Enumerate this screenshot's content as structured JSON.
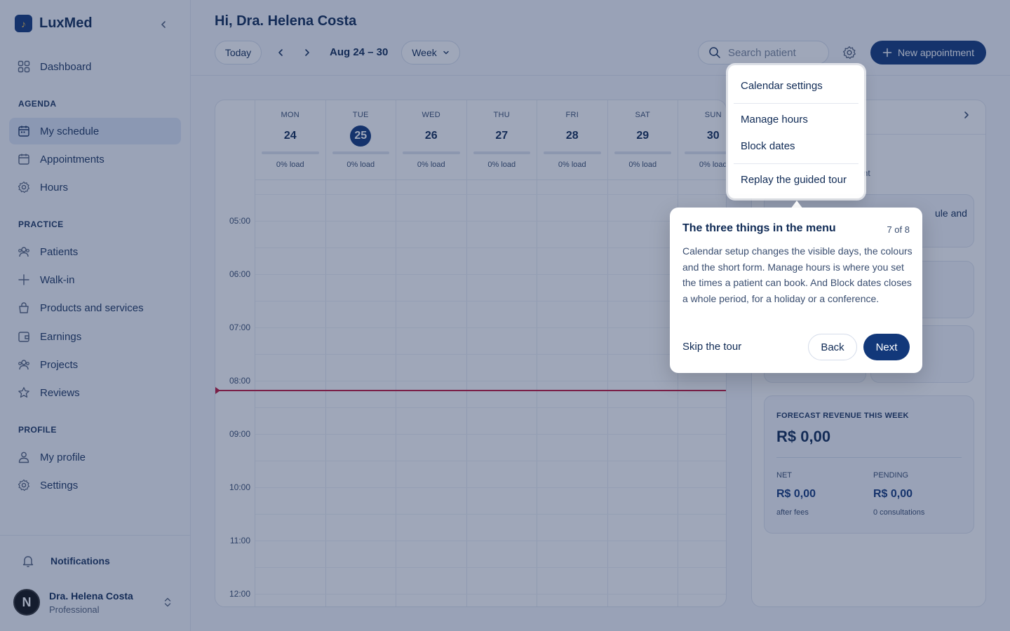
{
  "sidebar": {
    "brand": "LuxMed",
    "dashboard": "Dashboard",
    "agenda_label": "AGENDA",
    "agenda_items": [
      "My schedule",
      "Appointments",
      "Hours"
    ],
    "practice_label": "PRACTICE",
    "practice_items": [
      "Patients",
      "Walk-in",
      "Products and services",
      "Earnings",
      "Projects",
      "Reviews"
    ],
    "profile_label": "PROFILE",
    "profile_items": [
      "My profile",
      "Settings"
    ],
    "notifications": "Notifications",
    "user": {
      "initial": "N",
      "name": "Dra. Helena Costa",
      "role": "Professional"
    }
  },
  "header": {
    "greeting": "Hi, Dra. Helena Costa",
    "today": "Today",
    "range": "Aug 24 – 30",
    "view": "Week",
    "search_placeholder": "Search patient",
    "new_appointment": "New appointment"
  },
  "calendar": {
    "days": [
      {
        "name": "MON",
        "num": "24",
        "load": "0% load",
        "today": false
      },
      {
        "name": "TUE",
        "num": "25",
        "load": "0% load",
        "today": true
      },
      {
        "name": "WED",
        "num": "26",
        "load": "0% load",
        "today": false
      },
      {
        "name": "THU",
        "num": "27",
        "load": "0% load",
        "today": false
      },
      {
        "name": "FRI",
        "num": "28",
        "load": "0% load",
        "today": false
      },
      {
        "name": "SAT",
        "num": "29",
        "load": "0% load",
        "today": false
      },
      {
        "name": "SUN",
        "num": "30",
        "load": "0% load",
        "today": false
      }
    ],
    "hours": [
      "05:00",
      "06:00",
      "07:00",
      "08:00",
      "09:00",
      "10:00",
      "11:00",
      "12:00"
    ]
  },
  "right_panel": {
    "sub_fragment": "ent",
    "card1_fragment": "ule and",
    "card2_fragment": "H",
    "card3_fragment": "T",
    "card3_value_fragment": "0",
    "forecast": {
      "title": "FORECAST REVENUE THIS WEEK",
      "amount": "R$ 0,00",
      "net_label": "NET",
      "net_value": "R$ 0,00",
      "net_note": "after fees",
      "pending_label": "PENDING",
      "pending_value": "R$ 0,00",
      "pending_note": "0 consultations"
    }
  },
  "menu": {
    "items": [
      "Calendar settings",
      "Manage hours",
      "Block dates",
      "Replay the guided tour"
    ]
  },
  "tour": {
    "title": "The three things in the menu",
    "step": "7 of 8",
    "body": "Calendar setup changes the visible days, the colours and the short form. Manage hours is where you set the times a patient can book. And Block dates closes a whole period, for a holiday or a conference.",
    "skip": "Skip the tour",
    "back": "Back",
    "next": "Next"
  },
  "colors": {
    "brand": "#12387a",
    "now_line": "#c0163b"
  }
}
